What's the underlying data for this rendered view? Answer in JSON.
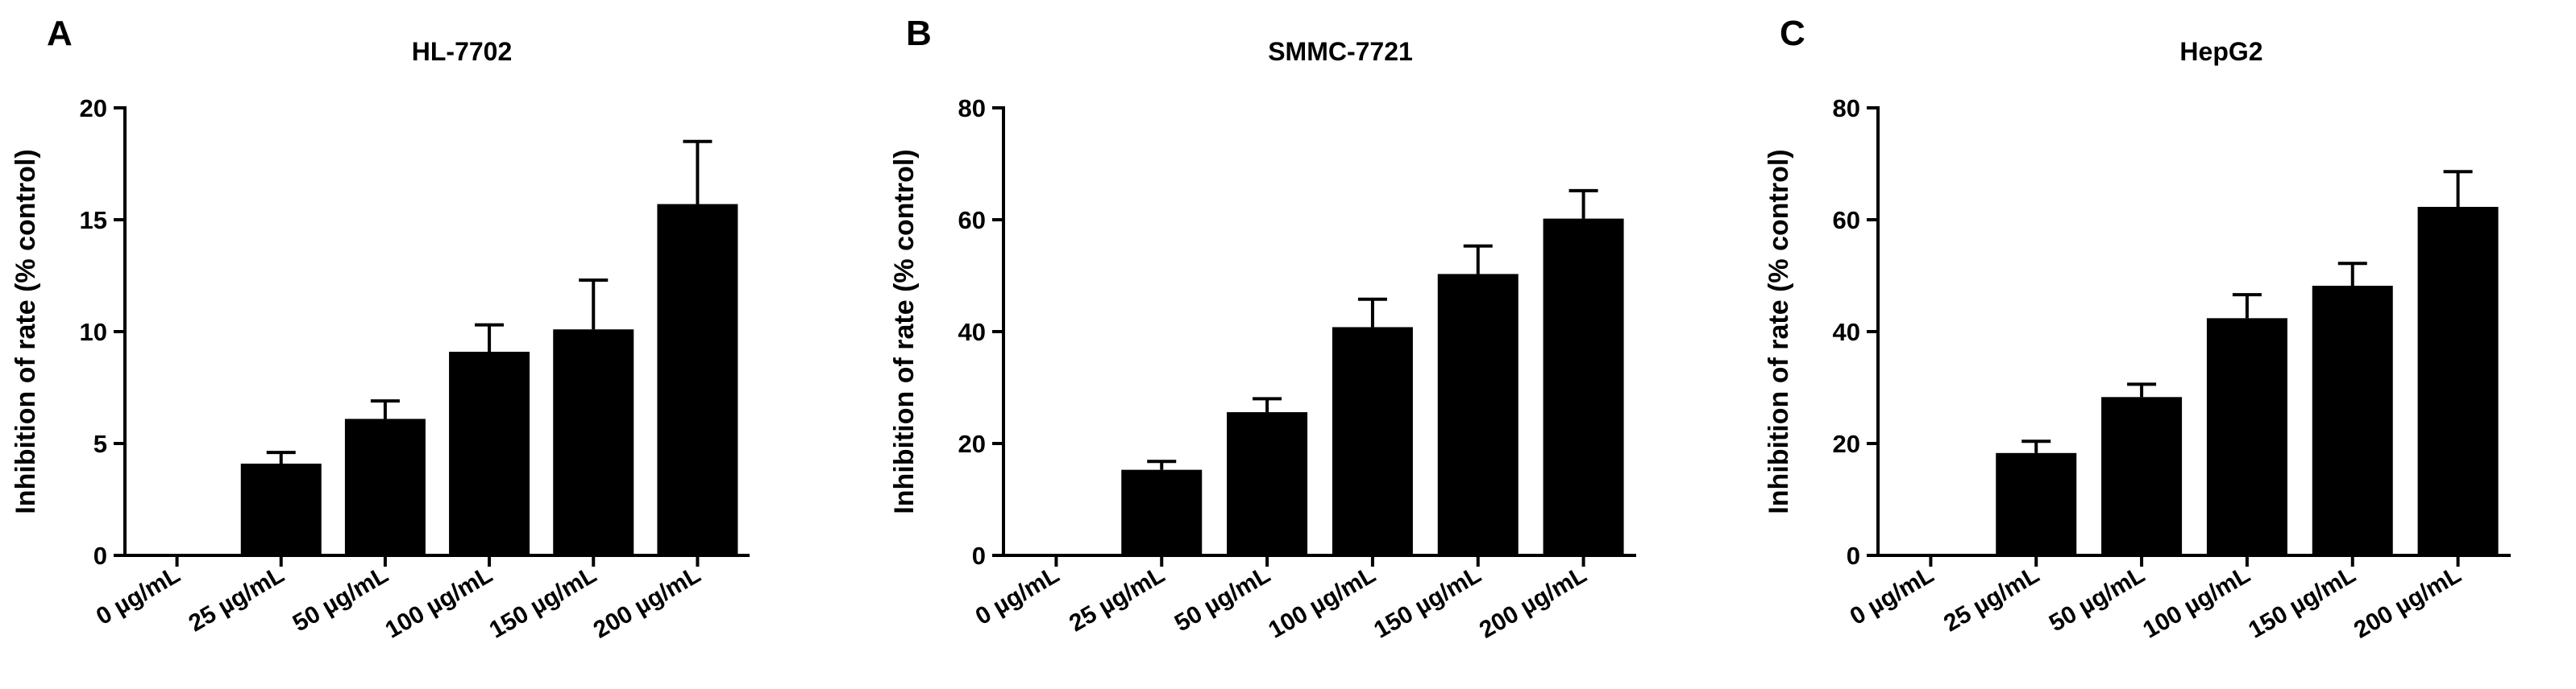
{
  "chart_data": [
    {
      "type": "bar",
      "panel": "A",
      "title": "HL-7702",
      "ylabel": "Inhibition of rate (% control)",
      "xlabel": "",
      "ylim": [
        0,
        20
      ],
      "yticks": [
        0,
        5,
        10,
        15,
        20
      ],
      "categories": [
        "0 µg/mL",
        "25 µg/mL",
        "50 µg/mL",
        "100 µg/mL",
        "150 µg/mL",
        "200 µg/mL"
      ],
      "values": [
        0,
        4.1,
        6.1,
        9.1,
        10.1,
        15.7
      ],
      "errors": [
        0,
        0.5,
        0.8,
        1.2,
        2.2,
        2.8
      ],
      "bar_color": "#000000"
    },
    {
      "type": "bar",
      "panel": "B",
      "title": "SMMC-7721",
      "ylabel": "Inhibition of rate (% control)",
      "xlabel": "",
      "ylim": [
        0,
        80
      ],
      "yticks": [
        0,
        20,
        40,
        60,
        80
      ],
      "categories": [
        "0 µg/mL",
        "25 µg/mL",
        "50 µg/mL",
        "100 µg/mL",
        "150 µg/mL",
        "200 µg/mL"
      ],
      "values": [
        0,
        15.3,
        25.6,
        40.8,
        50.3,
        60.2
      ],
      "errors": [
        0,
        1.5,
        2.4,
        5.0,
        5.0,
        5.0
      ],
      "bar_color": "#000000"
    },
    {
      "type": "bar",
      "panel": "C",
      "title": "HepG2",
      "ylabel": "Inhibition of rate (% control)",
      "xlabel": "",
      "ylim": [
        0,
        80
      ],
      "yticks": [
        0,
        20,
        40,
        60,
        80
      ],
      "categories": [
        "0 µg/mL",
        "25 µg/mL",
        "50 µg/mL",
        "100 µg/mL",
        "150 µg/mL",
        "200 µg/mL"
      ],
      "values": [
        0,
        18.3,
        28.3,
        42.4,
        48.2,
        62.3
      ],
      "errors": [
        0,
        2.1,
        2.3,
        4.2,
        4.0,
        6.3
      ],
      "bar_color": "#000000"
    }
  ]
}
